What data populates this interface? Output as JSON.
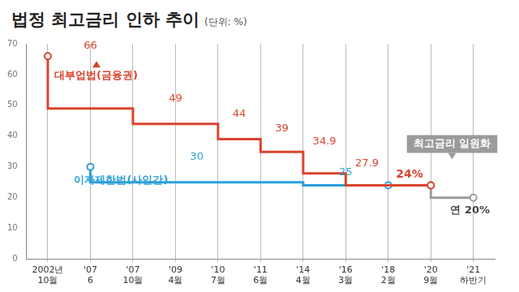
{
  "chart_data": {
    "type": "line",
    "title": "법정 최고금리 인하 추이",
    "subtitle": "(단위: %)",
    "categories": [
      "2002년 10월",
      "'07 6",
      "'07 10월",
      "'09 4월",
      "'10 7월",
      "'11 6월",
      "'14 4월",
      "'16 3월",
      "'18 2월",
      "'20 9월",
      "'21 하반기"
    ],
    "series": [
      {
        "name": "대부업법(금융권)",
        "color": "#d9442e",
        "line_style": "step",
        "marker": "circle",
        "values": [
          66,
          null,
          49,
          null,
          44,
          39,
          34.9,
          27.9,
          24,
          24,
          null
        ],
        "value_labels": [
          "66",
          null,
          "49",
          null,
          "44",
          "39",
          "34.9",
          "27.9",
          "24%",
          null,
          null
        ]
      },
      {
        "name": "이자제한법(사인간)",
        "color": "#2b9fd9",
        "line_style": "step",
        "marker": "circle",
        "values": [
          null,
          30,
          null,
          null,
          null,
          null,
          25,
          null,
          24,
          null,
          null
        ],
        "value_labels": [
          null,
          "30",
          null,
          null,
          null,
          null,
          "25",
          null,
          null,
          null,
          null
        ]
      },
      {
        "name": "최고금리 일원화",
        "color": "#9b9b9b",
        "line_style": "step",
        "marker": "circle",
        "values": [
          null,
          null,
          null,
          null,
          null,
          null,
          null,
          null,
          null,
          24,
          20
        ],
        "value_labels": [
          null,
          null,
          null,
          null,
          null,
          null,
          null,
          null,
          null,
          null,
          "연 20%"
        ]
      }
    ],
    "ylim": [
      0,
      70
    ],
    "yticks": [
      0,
      10,
      20,
      30,
      40,
      50,
      60,
      70
    ],
    "grid": "x",
    "data_labels": true
  }
}
